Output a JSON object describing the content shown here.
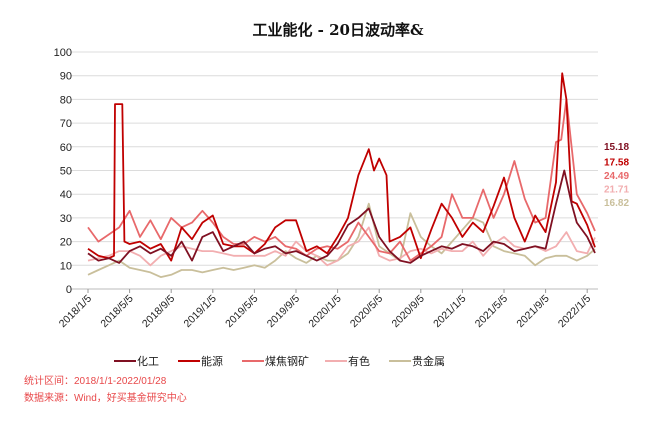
{
  "chart_data": {
    "type": "line",
    "title": "工业能化 - 20日波动率&",
    "xlabel": "",
    "ylabel": "",
    "ylim": [
      0,
      100
    ],
    "yticks": [
      "0",
      "10",
      "20",
      "30",
      "40",
      "50",
      "60",
      "70",
      "80",
      "90",
      "100"
    ],
    "xticks": [
      "2018/1/5",
      "2018/5/5",
      "2018/9/5",
      "2019/1/5",
      "2019/5/5",
      "2019/9/5",
      "2020/1/5",
      "2020/5/5",
      "2020/9/5",
      "2021/1/5",
      "2021/5/5",
      "2021/9/5",
      "2022/1/5"
    ],
    "x_unit": "months since 2018/1/5",
    "grid": true,
    "legend_position": "bottom",
    "series": [
      {
        "name": "化工",
        "color": "#7F1022",
        "last_label": "15.18",
        "points": [
          [
            0,
            15
          ],
          [
            1,
            12
          ],
          [
            2,
            13
          ],
          [
            3,
            11
          ],
          [
            4,
            16
          ],
          [
            5,
            18
          ],
          [
            6,
            15
          ],
          [
            7,
            17
          ],
          [
            8,
            14
          ],
          [
            9,
            20
          ],
          [
            10,
            12
          ],
          [
            11,
            22
          ],
          [
            12,
            24
          ],
          [
            13,
            16
          ],
          [
            14,
            18
          ],
          [
            15,
            20
          ],
          [
            16,
            15
          ],
          [
            17,
            17
          ],
          [
            18,
            18
          ],
          [
            19,
            15
          ],
          [
            20,
            16
          ],
          [
            21,
            14
          ],
          [
            22,
            12
          ],
          [
            23,
            14
          ],
          [
            24,
            19
          ],
          [
            25,
            27
          ],
          [
            26,
            30
          ],
          [
            27,
            34
          ],
          [
            28,
            22
          ],
          [
            29,
            16
          ],
          [
            30,
            12
          ],
          [
            31,
            11
          ],
          [
            32,
            14
          ],
          [
            33,
            16
          ],
          [
            34,
            18
          ],
          [
            35,
            17
          ],
          [
            36,
            19
          ],
          [
            37,
            18
          ],
          [
            38,
            16
          ],
          [
            39,
            20
          ],
          [
            40,
            19
          ],
          [
            41,
            16
          ],
          [
            42,
            17
          ],
          [
            43,
            18
          ],
          [
            44,
            17
          ],
          [
            45,
            36
          ],
          [
            45.8,
            50
          ],
          [
            46.5,
            36
          ],
          [
            47,
            28
          ],
          [
            48,
            22
          ],
          [
            48.75,
            15.18
          ]
        ]
      },
      {
        "name": "能源",
        "color": "#C00000",
        "last_label": "17.58",
        "points": [
          [
            0,
            17
          ],
          [
            1,
            14
          ],
          [
            2,
            13
          ],
          [
            2.5,
            14
          ],
          [
            2.6,
            78
          ],
          [
            3.3,
            78
          ],
          [
            3.5,
            20
          ],
          [
            4,
            19
          ],
          [
            5,
            20
          ],
          [
            6,
            17
          ],
          [
            7,
            19
          ],
          [
            8,
            12
          ],
          [
            9,
            26
          ],
          [
            10,
            21
          ],
          [
            11,
            28
          ],
          [
            12,
            31
          ],
          [
            13,
            19
          ],
          [
            14,
            18
          ],
          [
            15,
            18
          ],
          [
            16,
            15
          ],
          [
            17,
            19
          ],
          [
            18,
            26
          ],
          [
            19,
            29
          ],
          [
            20,
            29
          ],
          [
            21,
            16
          ],
          [
            22,
            18
          ],
          [
            23,
            15
          ],
          [
            24,
            22
          ],
          [
            25,
            30
          ],
          [
            26,
            48
          ],
          [
            27,
            59
          ],
          [
            27.5,
            50
          ],
          [
            28,
            55
          ],
          [
            28.7,
            48
          ],
          [
            29,
            20
          ],
          [
            30,
            22
          ],
          [
            31,
            26
          ],
          [
            32,
            13
          ],
          [
            33,
            25
          ],
          [
            34,
            36
          ],
          [
            35,
            30
          ],
          [
            36,
            22
          ],
          [
            37,
            28
          ],
          [
            38,
            24
          ],
          [
            39,
            35
          ],
          [
            40,
            47
          ],
          [
            41,
            30
          ],
          [
            42,
            20
          ],
          [
            43,
            31
          ],
          [
            44,
            24
          ],
          [
            45,
            45
          ],
          [
            45.6,
            91
          ],
          [
            46,
            80
          ],
          [
            46.5,
            37
          ],
          [
            47,
            36
          ],
          [
            48,
            27
          ],
          [
            48.75,
            17.58
          ]
        ]
      },
      {
        "name": "煤焦钢矿",
        "color": "#E8696B",
        "last_label": "24.49",
        "points": [
          [
            0,
            26
          ],
          [
            1,
            20
          ],
          [
            2,
            23
          ],
          [
            3,
            26
          ],
          [
            4,
            33
          ],
          [
            5,
            22
          ],
          [
            6,
            29
          ],
          [
            7,
            21
          ],
          [
            8,
            30
          ],
          [
            9,
            26
          ],
          [
            10,
            28
          ],
          [
            11,
            33
          ],
          [
            12,
            28
          ],
          [
            13,
            22
          ],
          [
            14,
            19
          ],
          [
            15,
            19
          ],
          [
            16,
            22
          ],
          [
            17,
            20
          ],
          [
            18,
            22
          ],
          [
            19,
            18
          ],
          [
            20,
            17
          ],
          [
            21,
            14
          ],
          [
            22,
            17
          ],
          [
            23,
            18
          ],
          [
            24,
            17
          ],
          [
            25,
            20
          ],
          [
            26,
            28
          ],
          [
            27,
            22
          ],
          [
            28,
            16
          ],
          [
            29,
            15
          ],
          [
            30,
            20
          ],
          [
            31,
            12
          ],
          [
            32,
            15
          ],
          [
            33,
            18
          ],
          [
            34,
            22
          ],
          [
            35,
            40
          ],
          [
            36,
            30
          ],
          [
            37,
            30
          ],
          [
            38,
            42
          ],
          [
            39,
            30
          ],
          [
            40,
            40
          ],
          [
            41,
            54
          ],
          [
            42,
            38
          ],
          [
            43,
            28
          ],
          [
            44,
            30
          ],
          [
            45,
            62
          ],
          [
            45.5,
            63
          ],
          [
            46,
            80
          ],
          [
            47,
            40
          ],
          [
            48,
            32
          ],
          [
            48.75,
            24.49
          ]
        ]
      },
      {
        "name": "有色",
        "color": "#F2AEB0",
        "last_label": "21.71",
        "points": [
          [
            0,
            12
          ],
          [
            1,
            13
          ],
          [
            2,
            14
          ],
          [
            3,
            16
          ],
          [
            4,
            16
          ],
          [
            5,
            14
          ],
          [
            6,
            10
          ],
          [
            7,
            14
          ],
          [
            8,
            16
          ],
          [
            9,
            18
          ],
          [
            10,
            17
          ],
          [
            11,
            16
          ],
          [
            12,
            16
          ],
          [
            13,
            15
          ],
          [
            14,
            14
          ],
          [
            15,
            14
          ],
          [
            16,
            14
          ],
          [
            17,
            14
          ],
          [
            18,
            16
          ],
          [
            19,
            14
          ],
          [
            20,
            20
          ],
          [
            21,
            16
          ],
          [
            22,
            14
          ],
          [
            23,
            10
          ],
          [
            24,
            12
          ],
          [
            25,
            18
          ],
          [
            26,
            20
          ],
          [
            27,
            26
          ],
          [
            28,
            14
          ],
          [
            29,
            12
          ],
          [
            30,
            13
          ],
          [
            31,
            16
          ],
          [
            32,
            17
          ],
          [
            33,
            15
          ],
          [
            34,
            17
          ],
          [
            35,
            16
          ],
          [
            36,
            16
          ],
          [
            37,
            20
          ],
          [
            38,
            14
          ],
          [
            39,
            19
          ],
          [
            40,
            22
          ],
          [
            41,
            18
          ],
          [
            42,
            17
          ],
          [
            43,
            18
          ],
          [
            44,
            16
          ],
          [
            45,
            18
          ],
          [
            46,
            24
          ],
          [
            47,
            16
          ],
          [
            48,
            15
          ],
          [
            48.75,
            21.71
          ]
        ]
      },
      {
        "name": "贵金属",
        "color": "#C9BF9B",
        "last_label": "16.82",
        "points": [
          [
            0,
            6
          ],
          [
            1,
            8
          ],
          [
            2,
            10
          ],
          [
            3,
            12
          ],
          [
            4,
            9
          ],
          [
            5,
            8
          ],
          [
            6,
            7
          ],
          [
            7,
            5
          ],
          [
            8,
            6
          ],
          [
            9,
            8
          ],
          [
            10,
            8
          ],
          [
            11,
            7
          ],
          [
            12,
            8
          ],
          [
            13,
            9
          ],
          [
            14,
            8
          ],
          [
            15,
            9
          ],
          [
            16,
            10
          ],
          [
            17,
            9
          ],
          [
            18,
            12
          ],
          [
            19,
            16
          ],
          [
            20,
            13
          ],
          [
            21,
            11
          ],
          [
            22,
            14
          ],
          [
            23,
            12
          ],
          [
            24,
            12
          ],
          [
            25,
            15
          ],
          [
            26,
            22
          ],
          [
            27,
            36
          ],
          [
            28,
            18
          ],
          [
            29,
            15
          ],
          [
            30,
            12
          ],
          [
            31,
            32
          ],
          [
            32,
            22
          ],
          [
            33,
            18
          ],
          [
            34,
            15
          ],
          [
            35,
            20
          ],
          [
            36,
            25
          ],
          [
            37,
            30
          ],
          [
            38,
            28
          ],
          [
            39,
            18
          ],
          [
            40,
            16
          ],
          [
            41,
            15
          ],
          [
            42,
            14
          ],
          [
            43,
            10
          ],
          [
            44,
            13
          ],
          [
            45,
            14
          ],
          [
            46,
            14
          ],
          [
            47,
            12
          ],
          [
            48,
            14
          ],
          [
            48.75,
            16.82
          ]
        ]
      }
    ]
  },
  "notes": {
    "period": "统计区间：2018/1/1-2022/01/28",
    "source": "数据来源：Wind，好买基金研究中心"
  }
}
